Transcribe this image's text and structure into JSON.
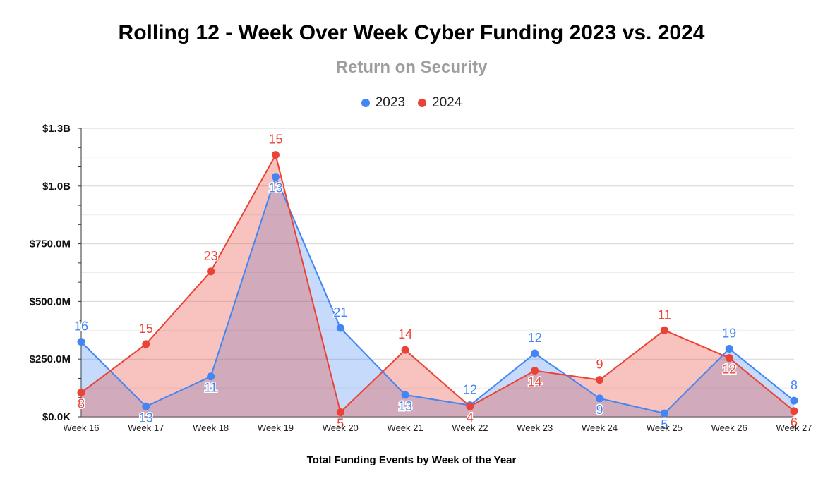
{
  "chart_data": {
    "type": "area",
    "title": "Rolling 12 - Week Over Week Cyber Funding 2023 vs. 2024",
    "subtitle": "Return on Security",
    "xlabel": "Total Funding Events by Week of the Year",
    "ylabel": "",
    "ylim": [
      0,
      1250
    ],
    "yunit": "millions USD",
    "yticks": [
      {
        "value": 0,
        "label": "$0.0K"
      },
      {
        "value": 250,
        "label": "$250.0M"
      },
      {
        "value": 500,
        "label": "$500.0M"
      },
      {
        "value": 750,
        "label": "$750.0M"
      },
      {
        "value": 1000,
        "label": "$1.0B"
      },
      {
        "value": 1250,
        "label": "$1.3B"
      }
    ],
    "categories": [
      "Week 16",
      "Week 17",
      "Week 18",
      "Week 19",
      "Week 20",
      "Week 21",
      "Week 22",
      "Week 23",
      "Week 24",
      "Week 25",
      "Week 26",
      "Week 27"
    ],
    "series": [
      {
        "name": "2023",
        "color": "#4285f4",
        "fill": "#c9dcf9",
        "values": [
          325,
          45,
          175,
          1040,
          385,
          95,
          50,
          275,
          80,
          15,
          295,
          70
        ],
        "labels": [
          "16",
          "13",
          "11",
          "13",
          "21",
          "13",
          "12",
          "12",
          "9",
          "5",
          "19",
          "8"
        ]
      },
      {
        "name": "2024",
        "color": "#ea4335",
        "fill": "#f7c2bd",
        "values": [
          105,
          315,
          630,
          1135,
          20,
          290,
          45,
          200,
          160,
          375,
          255,
          25
        ],
        "labels": [
          "8",
          "15",
          "23",
          "15",
          "5",
          "14",
          "4",
          "14",
          "9",
          "11",
          "12",
          "6"
        ]
      }
    ]
  }
}
